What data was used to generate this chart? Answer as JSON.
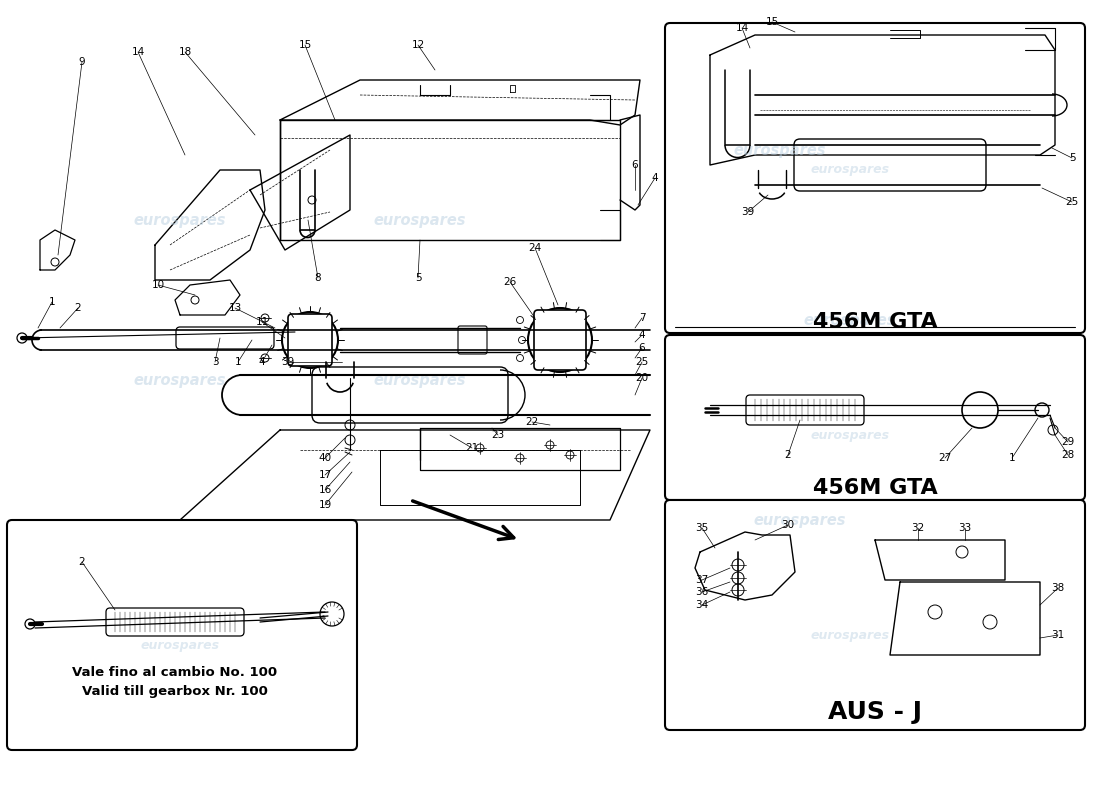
{
  "bg_color": "#ffffff",
  "line_color": "#000000",
  "watermark_color": "#b8cfe0",
  "watermark_text": "eurospares",
  "sub1_title": "456M GTA",
  "sub2_title": "456M GTA",
  "sub3_title": "AUS - J",
  "inset_text1": "Vale fino al cambio No. 100",
  "inset_text2": "Valid till gearbox Nr. 100"
}
